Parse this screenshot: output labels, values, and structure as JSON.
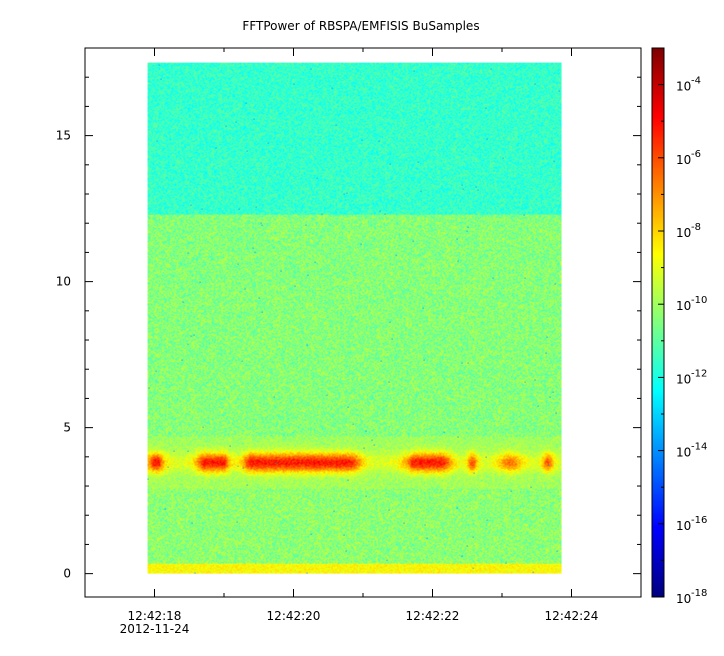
{
  "chart_data": {
    "type": "heatmap",
    "title": "FFTPower of RBSPA/EMFISIS  BuSamples",
    "x_ticks": [
      "12:42:18",
      "12:42:20",
      "12:42:22",
      "12:42:24"
    ],
    "x_date_label": "2012-11-24",
    "y_ticks": [
      "0",
      "5",
      "10",
      "15"
    ],
    "ylim": [
      -0.8,
      18
    ],
    "xlim_seconds": [
      17.0,
      25.0
    ],
    "data_time_range_seconds": [
      17.9,
      23.85
    ],
    "data_frequency_range": [
      0,
      17.5
    ],
    "colorbar": {
      "scale": "log",
      "range": [
        1e-18,
        0.001
      ],
      "tick_values": [
        -18,
        -16,
        -14,
        -12,
        -10,
        -8,
        -6,
        -4
      ],
      "tick_base": "10",
      "tick_exponents": [
        "-18",
        "-16",
        "-14",
        "-12",
        "-10",
        "-8",
        "-6",
        "-4"
      ]
    },
    "regions": [
      {
        "name": "low-frequency floor",
        "y_range": [
          0,
          0.3
        ],
        "log_power": -8.8
      },
      {
        "name": "lower background",
        "y_range": [
          0.3,
          3.3
        ],
        "log_power": -10.3
      },
      {
        "name": "emission band",
        "y_range": [
          3.3,
          4.4
        ],
        "center": 3.8,
        "log_power_peak": -6.5
      },
      {
        "name": "mid background",
        "y_range": [
          4.4,
          12.3
        ],
        "log_power": -10.4
      },
      {
        "name": "upper background",
        "y_range": [
          12.3,
          17.5
        ],
        "log_power": -11.6
      }
    ],
    "grid": false,
    "legend": "colorbar-right"
  }
}
